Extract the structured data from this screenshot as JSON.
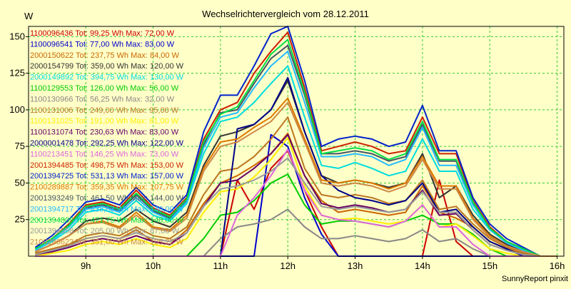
{
  "chart_data": {
    "type": "line",
    "title": "Wechselrichtervergleich vom 28.12.2011",
    "ylabel": "W",
    "footer": "SunnyReport pinxit",
    "ylim": [
      0,
      157
    ],
    "xlim": [
      8.15,
      16.1
    ],
    "yticks": [
      25,
      50,
      75,
      100,
      125,
      150
    ],
    "xticks": [
      {
        "v": 9,
        "label": "9h"
      },
      {
        "v": 10,
        "label": "10h"
      },
      {
        "v": 11,
        "label": "11h"
      },
      {
        "v": 12,
        "label": "12h"
      },
      {
        "v": 13,
        "label": "13h"
      },
      {
        "v": 14,
        "label": "14h"
      },
      {
        "v": 15,
        "label": "15h"
      },
      {
        "v": 16,
        "label": "16h"
      }
    ],
    "grid": true,
    "legend_position": "top-left",
    "x": [
      8.25,
      8.5,
      8.75,
      9.0,
      9.25,
      9.5,
      9.75,
      10.0,
      10.25,
      10.5,
      10.75,
      11.0,
      11.25,
      11.5,
      11.75,
      12.0,
      12.25,
      12.5,
      12.75,
      13.0,
      13.25,
      13.5,
      13.75,
      14.0,
      14.25,
      14.5,
      14.75,
      15.0,
      15.25,
      15.5,
      15.75,
      16.0
    ],
    "series": [
      {
        "name": "1100096436 Tot: 99,25 Wh Max: 72,00 W",
        "color": "#cc0000",
        "values": [
          0,
          0,
          0,
          0,
          0,
          0,
          0,
          0,
          0,
          0,
          0,
          0,
          52,
          32,
          60,
          72,
          45,
          20,
          0,
          0,
          0,
          0,
          0,
          0,
          52,
          10,
          0,
          0,
          0,
          0,
          0,
          0
        ]
      },
      {
        "name": "1100096541 Tot: 77,00 Wh Max: 83,00 W",
        "color": "#0000cc",
        "values": [
          0,
          0,
          0,
          0,
          0,
          0,
          0,
          0,
          0,
          0,
          0,
          0,
          0,
          0,
          83,
          75,
          40,
          15,
          0,
          0,
          0,
          0,
          0,
          0,
          0,
          0,
          0,
          0,
          0,
          0,
          0,
          0
        ]
      },
      {
        "name": "2000150622 Tot: 237,75 Wh Max: 84,00 W",
        "color": "#cc6600",
        "values": [
          2,
          5,
          8,
          12,
          14,
          12,
          18,
          10,
          8,
          18,
          36,
          50,
          55,
          62,
          70,
          84,
          55,
          38,
          30,
          32,
          30,
          28,
          30,
          48,
          30,
          26,
          20,
          10,
          5,
          2,
          0,
          0
        ]
      },
      {
        "name": "2000154799 Tot: 359,00 Wh Max: 120,00 W",
        "color": "#333333",
        "values": [
          3,
          8,
          14,
          24,
          26,
          24,
          32,
          24,
          20,
          30,
          62,
          82,
          85,
          90,
          100,
          120,
          85,
          55,
          50,
          52,
          50,
          47,
          50,
          70,
          40,
          48,
          28,
          15,
          8,
          4,
          0,
          0
        ]
      },
      {
        "name": "2000149892 Tot: 394,75 Wh Max: 130,00 W",
        "color": "#00dddd",
        "values": [
          4,
          10,
          18,
          30,
          32,
          28,
          38,
          28,
          24,
          36,
          70,
          92,
          95,
          105,
          118,
          130,
          95,
          62,
          60,
          64,
          60,
          55,
          58,
          80,
          58,
          58,
          32,
          18,
          10,
          5,
          0,
          0
        ]
      },
      {
        "name": "1100129553 Tot: 126,00 Wh Max: 56,00 W",
        "color": "#00cc00",
        "values": [
          0,
          0,
          0,
          0,
          0,
          0,
          0,
          0,
          0,
          0,
          12,
          28,
          30,
          38,
          50,
          56,
          35,
          22,
          24,
          24,
          22,
          20,
          24,
          28,
          22,
          22,
          15,
          5,
          0,
          0,
          0,
          0
        ]
      },
      {
        "name": "1100130966 Tot: 56,25 Wh Max: 32,00 W",
        "color": "#888888",
        "values": [
          0,
          0,
          0,
          0,
          0,
          0,
          0,
          0,
          0,
          0,
          0,
          12,
          20,
          22,
          25,
          32,
          20,
          12,
          12,
          14,
          12,
          10,
          12,
          18,
          10,
          12,
          5,
          0,
          0,
          0,
          0,
          0
        ]
      },
      {
        "name": "1100131006 Tot: 249,00 Wh Max: 95,00 W",
        "color": "#bb7722",
        "values": [
          2,
          5,
          8,
          14,
          16,
          14,
          20,
          14,
          12,
          20,
          42,
          58,
          60,
          68,
          80,
          95,
          60,
          42,
          40,
          42,
          40,
          36,
          38,
          52,
          32,
          34,
          22,
          12,
          6,
          2,
          0,
          0
        ]
      },
      {
        "name": "1100131025 Tot: 191,00 Wh Max: 81,00 W",
        "color": "#ffee00",
        "values": [
          0,
          2,
          4,
          8,
          10,
          8,
          12,
          8,
          6,
          12,
          30,
          44,
          46,
          54,
          66,
          81,
          48,
          28,
          25,
          26,
          24,
          22,
          24,
          35,
          20,
          22,
          14,
          5,
          2,
          0,
          0,
          0
        ]
      },
      {
        "name": "1100131074 Tot: 230,63 Wh Max: 83,00 W",
        "color": "#660066",
        "values": [
          1,
          3,
          6,
          10,
          12,
          10,
          14,
          10,
          8,
          16,
          34,
          50,
          52,
          60,
          70,
          83,
          55,
          36,
          33,
          35,
          33,
          30,
          32,
          45,
          28,
          29,
          18,
          8,
          4,
          1,
          0,
          0
        ]
      },
      {
        "name": "2000001478 Tot: 292,25 Wh Max: 122,00 W",
        "color": "#000088",
        "values": [
          0,
          0,
          0,
          0,
          0,
          0,
          0,
          0,
          0,
          0,
          0,
          0,
          87,
          90,
          100,
          122,
          85,
          55,
          45,
          40,
          38,
          35,
          38,
          50,
          30,
          32,
          20,
          10,
          5,
          0,
          0,
          0
        ]
      },
      {
        "name": "1100213451 Tot: 146,25 Wh Max: 73,00 W",
        "color": "#dd66dd",
        "values": [
          0,
          0,
          0,
          0,
          0,
          0,
          0,
          0,
          0,
          0,
          0,
          0,
          28,
          40,
          55,
          73,
          45,
          28,
          25,
          24,
          22,
          20,
          24,
          35,
          20,
          20,
          8,
          0,
          0,
          0,
          0,
          0
        ]
      },
      {
        "name": "2001394485 Tot: 498,75 Wh Max: 153,00 W",
        "color": "#cc2200",
        "values": [
          5,
          12,
          22,
          35,
          37,
          33,
          45,
          33,
          28,
          40,
          80,
          100,
          105,
          125,
          140,
          153,
          115,
          72,
          75,
          78,
          75,
          70,
          72,
          95,
          70,
          70,
          38,
          20,
          10,
          5,
          0,
          0
        ]
      },
      {
        "name": "2001394725 Tot: 531,13 Wh Max: 157,00 W",
        "color": "#0022cc",
        "values": [
          6,
          14,
          25,
          37,
          39,
          35,
          47,
          35,
          30,
          42,
          85,
          110,
          110,
          130,
          152,
          157,
          120,
          75,
          80,
          82,
          80,
          75,
          78,
          103,
          72,
          72,
          40,
          22,
          12,
          6,
          0,
          0
        ]
      },
      {
        "name": "2100289887 Tot: 359,35 Wh Max: 107,75 W",
        "color": "#dd7700",
        "values": [
          3,
          8,
          14,
          22,
          24,
          20,
          30,
          20,
          18,
          28,
          60,
          78,
          80,
          88,
          95,
          108,
          80,
          52,
          50,
          52,
          50,
          46,
          50,
          68,
          48,
          48,
          26,
          14,
          7,
          3,
          0,
          0
        ]
      },
      {
        "name": "2001393249 Tot: 461,50 Wh Max: 144,00 W",
        "color": "#445566",
        "values": [
          5,
          12,
          21,
          33,
          35,
          31,
          42,
          31,
          26,
          38,
          76,
          98,
          100,
          118,
          135,
          144,
          110,
          70,
          70,
          72,
          70,
          65,
          68,
          90,
          65,
          65,
          36,
          19,
          10,
          5,
          0,
          0
        ]
      },
      {
        "name": "2001394717 Tot: 438,63 Wh Max: 140,00 W",
        "color": "#22bbff",
        "values": [
          4,
          11,
          20,
          32,
          34,
          30,
          40,
          30,
          25,
          37,
          74,
          95,
          98,
          115,
          130,
          140,
          105,
          68,
          68,
          70,
          68,
          62,
          66,
          88,
          62,
          62,
          35,
          18,
          9,
          4,
          0,
          0
        ]
      },
      {
        "name": "2001394809 Tot: 471,75 Wh Max: 148,00 W",
        "color": "#00dd44",
        "values": [
          5,
          12,
          21,
          34,
          36,
          32,
          43,
          32,
          27,
          39,
          78,
          97,
          102,
          120,
          138,
          148,
          112,
          70,
          72,
          74,
          72,
          66,
          70,
          92,
          66,
          66,
          37,
          19,
          10,
          5,
          0,
          0
        ]
      },
      {
        "name": "2001394558 Tot: 205,00 Wh Max: 67,00 W",
        "color": "#999999",
        "values": [
          1,
          4,
          7,
          12,
          14,
          12,
          16,
          12,
          10,
          16,
          34,
          46,
          48,
          52,
          58,
          67,
          50,
          34,
          32,
          34,
          32,
          30,
          32,
          44,
          30,
          30,
          18,
          8,
          4,
          1,
          0,
          0
        ]
      },
      {
        "name": "2100286622 Tot: 351,00 Wh Max: 105,22 W",
        "color": "#cc8844",
        "values": [
          3,
          8,
          14,
          22,
          23,
          19,
          28,
          19,
          17,
          26,
          58,
          75,
          78,
          85,
          92,
          105,
          78,
          50,
          48,
          50,
          48,
          44,
          48,
          66,
          46,
          46,
          25,
          13,
          7,
          3,
          0,
          0
        ]
      }
    ]
  }
}
